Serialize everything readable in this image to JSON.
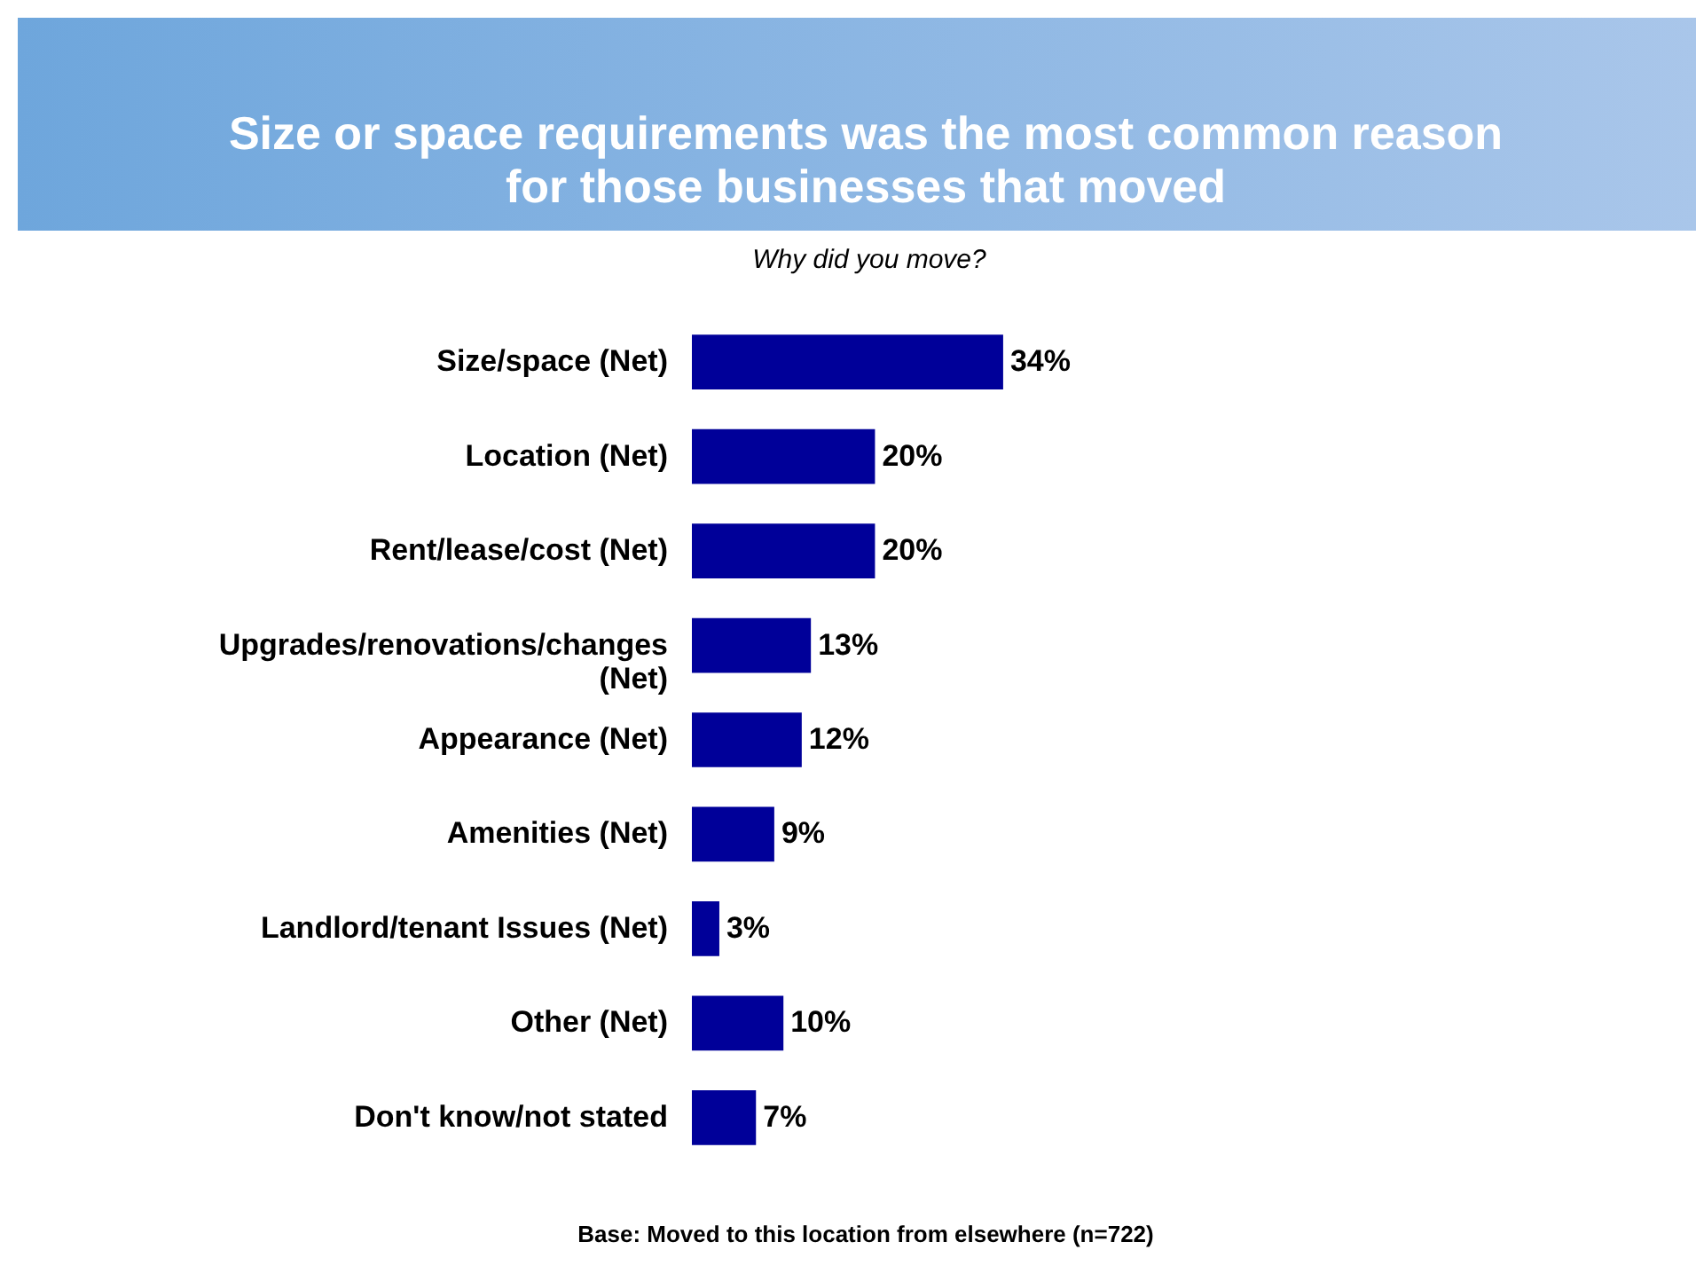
{
  "chart_data": {
    "type": "bar",
    "orientation": "horizontal",
    "title": "Size or space requirements was the most common reason for those businesses that moved",
    "subtitle": "Why did you move?",
    "categories": [
      "Size/space (Net)",
      "Location (Net)",
      "Rent/lease/cost (Net)",
      "Upgrades/renovations/changes (Net)",
      "Appearance (Net)",
      "Amenities (Net)",
      "Landlord/tenant Issues (Net)",
      "Other (Net)",
      "Don't know/not stated"
    ],
    "values": [
      34,
      20,
      20,
      13,
      12,
      9,
      3,
      10,
      7
    ],
    "value_labels": [
      "34%",
      "20%",
      "20%",
      "13%",
      "12%",
      "9%",
      "3%",
      "10%",
      "7%"
    ],
    "color": "#000099",
    "annotations": [
      "Base: Moved to this location from elsewhere (n=722)"
    ],
    "grid": false
  }
}
